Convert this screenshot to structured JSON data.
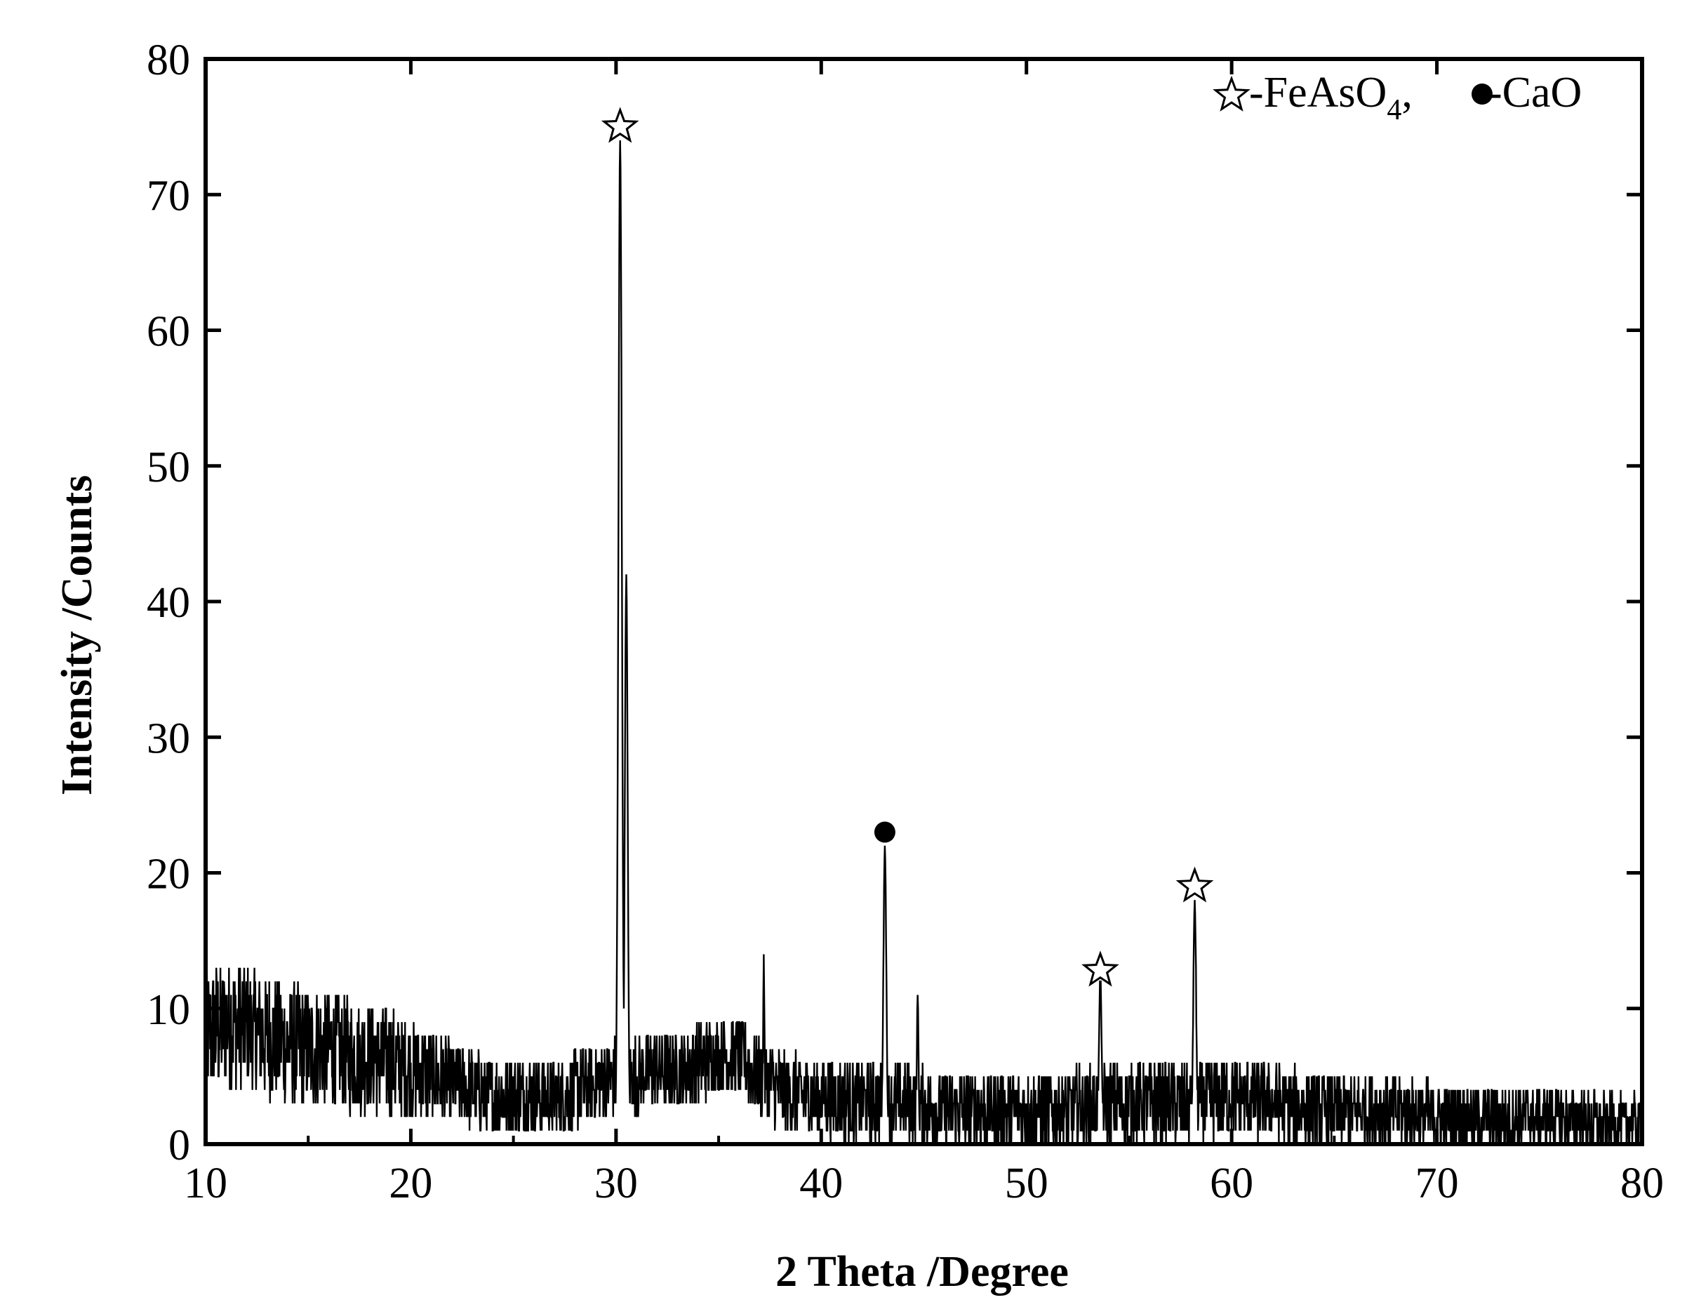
{
  "chart_data": {
    "type": "line",
    "xlabel": "2 Theta /Degree",
    "ylabel": "Intensity /Counts",
    "xlim": [
      10,
      80
    ],
    "ylim": [
      0,
      80
    ],
    "xticks": [
      10,
      20,
      30,
      40,
      50,
      60,
      70,
      80
    ],
    "yticks": [
      0,
      10,
      20,
      30,
      40,
      50,
      60,
      70,
      80
    ],
    "grid": false,
    "legend_position": "top-right",
    "legend": [
      {
        "marker": "open-star",
        "label_main": "-FeAsO",
        "label_sub": "4",
        "separator": ","
      },
      {
        "marker": "filled-circle",
        "label_main": "-CaO"
      }
    ],
    "series": [
      {
        "background": [
          [
            10,
            8
          ],
          [
            11,
            9
          ],
          [
            12,
            8.5
          ],
          [
            13,
            8
          ],
          [
            14,
            7.5
          ],
          [
            15,
            7
          ],
          [
            16,
            7
          ],
          [
            17,
            6.5
          ],
          [
            18,
            6.5
          ],
          [
            19,
            6
          ],
          [
            20,
            5.5
          ],
          [
            21,
            5
          ],
          [
            22,
            4.5
          ],
          [
            23,
            4
          ],
          [
            24,
            3.5
          ],
          [
            25,
            3.5
          ],
          [
            26,
            3.5
          ],
          [
            27,
            3.5
          ],
          [
            28,
            4
          ],
          [
            29,
            4.5
          ],
          [
            30,
            5
          ],
          [
            31,
            5
          ],
          [
            32,
            5.5
          ],
          [
            33,
            5.5
          ],
          [
            34,
            6
          ],
          [
            35,
            6.5
          ],
          [
            36,
            6.5
          ],
          [
            37,
            5
          ],
          [
            38,
            4
          ],
          [
            39,
            3.5
          ],
          [
            40,
            3.5
          ],
          [
            42,
            3
          ],
          [
            44,
            3
          ],
          [
            46,
            2.5
          ],
          [
            48,
            2.5
          ],
          [
            50,
            2.5
          ],
          [
            52,
            2.5
          ],
          [
            54,
            3
          ],
          [
            56,
            3
          ],
          [
            58,
            3
          ],
          [
            60,
            3.5
          ],
          [
            62,
            3
          ],
          [
            64,
            2.5
          ],
          [
            66,
            2.5
          ],
          [
            68,
            2.5
          ],
          [
            70,
            2
          ],
          [
            72,
            2
          ],
          [
            74,
            2
          ],
          [
            76,
            2
          ],
          [
            78,
            1.5
          ],
          [
            80,
            1.5
          ]
        ],
        "noise_amplitude": [
          [
            10,
            5
          ],
          [
            20,
            4
          ],
          [
            22,
            3
          ],
          [
            30,
            3
          ],
          [
            36,
            3
          ],
          [
            40,
            3
          ],
          [
            60,
            3
          ],
          [
            80,
            2
          ]
        ],
        "peaks": [
          {
            "x": 30.2,
            "y": 74,
            "width": 0.12
          },
          {
            "x": 30.5,
            "y": 42,
            "width": 0.1
          },
          {
            "x": 43.1,
            "y": 22,
            "width": 0.1
          },
          {
            "x": 53.6,
            "y": 12,
            "width": 0.1
          },
          {
            "x": 58.2,
            "y": 18,
            "width": 0.1
          },
          {
            "x": 44.7,
            "y": 11,
            "width": 0.06
          },
          {
            "x": 37.2,
            "y": 14,
            "width": 0.04
          }
        ]
      }
    ],
    "annotations": [
      {
        "marker": "open-star",
        "x": 30.2,
        "y": 75
      },
      {
        "marker": "filled-circle",
        "x": 43.1,
        "y": 23
      },
      {
        "marker": "open-star",
        "x": 53.6,
        "y": 12.8
      },
      {
        "marker": "open-star",
        "x": 58.2,
        "y": 19
      }
    ]
  }
}
